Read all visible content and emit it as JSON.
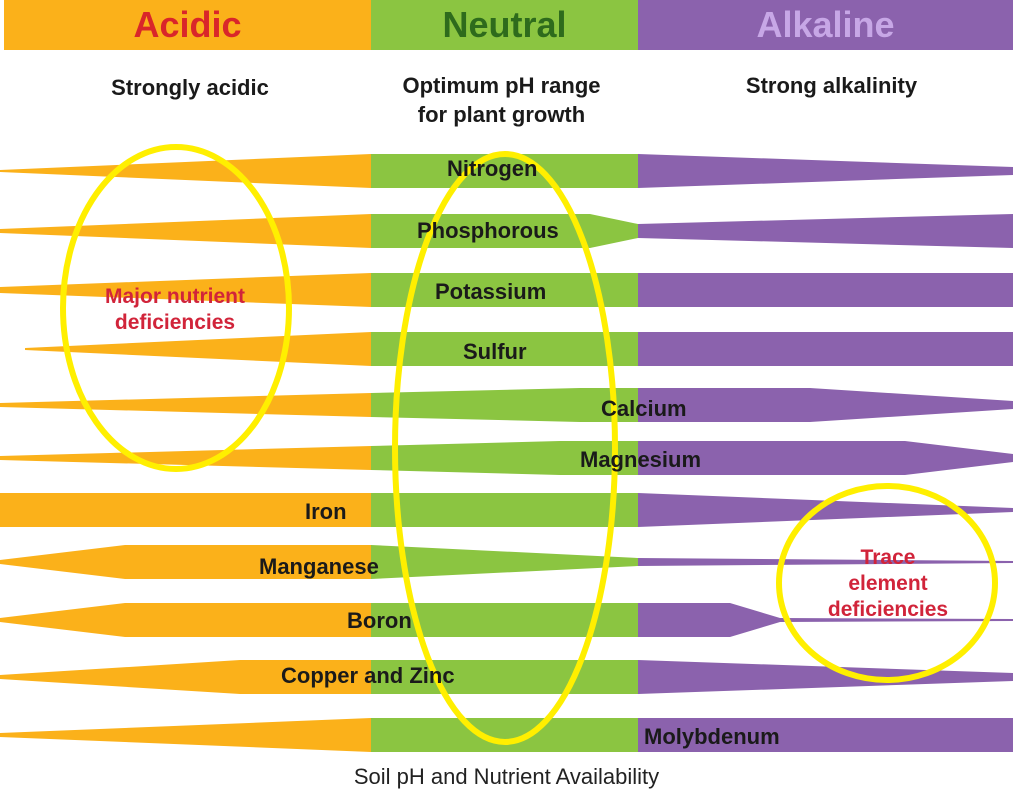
{
  "colors": {
    "acidic": "#fbb11a",
    "neutral": "#8bc541",
    "alkaline": "#8b62ad",
    "acidic_text": "#d9262a",
    "neutral_text": "#2e6b1c",
    "alkaline_text": "#c7a7e6",
    "highlight": "#ffef00",
    "note_text": "#d1243a"
  },
  "zones": {
    "acidic": {
      "label": "Acidic",
      "description": "Strongly acidic"
    },
    "neutral": {
      "label": "Neutral",
      "description_line1": "Optimum pH range",
      "description_line2": "for plant growth"
    },
    "alkaline": {
      "label": "Alkaline",
      "description": "Strong alkalinity"
    }
  },
  "nutrients": [
    {
      "name": "Nitrogen"
    },
    {
      "name": "Phosphorous"
    },
    {
      "name": "Potassium"
    },
    {
      "name": "Sulfur"
    },
    {
      "name": "Calcium"
    },
    {
      "name": "Magnesium"
    },
    {
      "name": "Iron"
    },
    {
      "name": "Manganese"
    },
    {
      "name": "Boron"
    },
    {
      "name": "Copper and Zinc"
    },
    {
      "name": "Molybdenum"
    }
  ],
  "annotations": {
    "major_line1": "Major nutrient",
    "major_line2": "deficiencies",
    "trace_line1": "Trace",
    "trace_line2": "element",
    "trace_line3": "deficiencies"
  },
  "caption": "Soil pH and Nutrient Availability"
}
